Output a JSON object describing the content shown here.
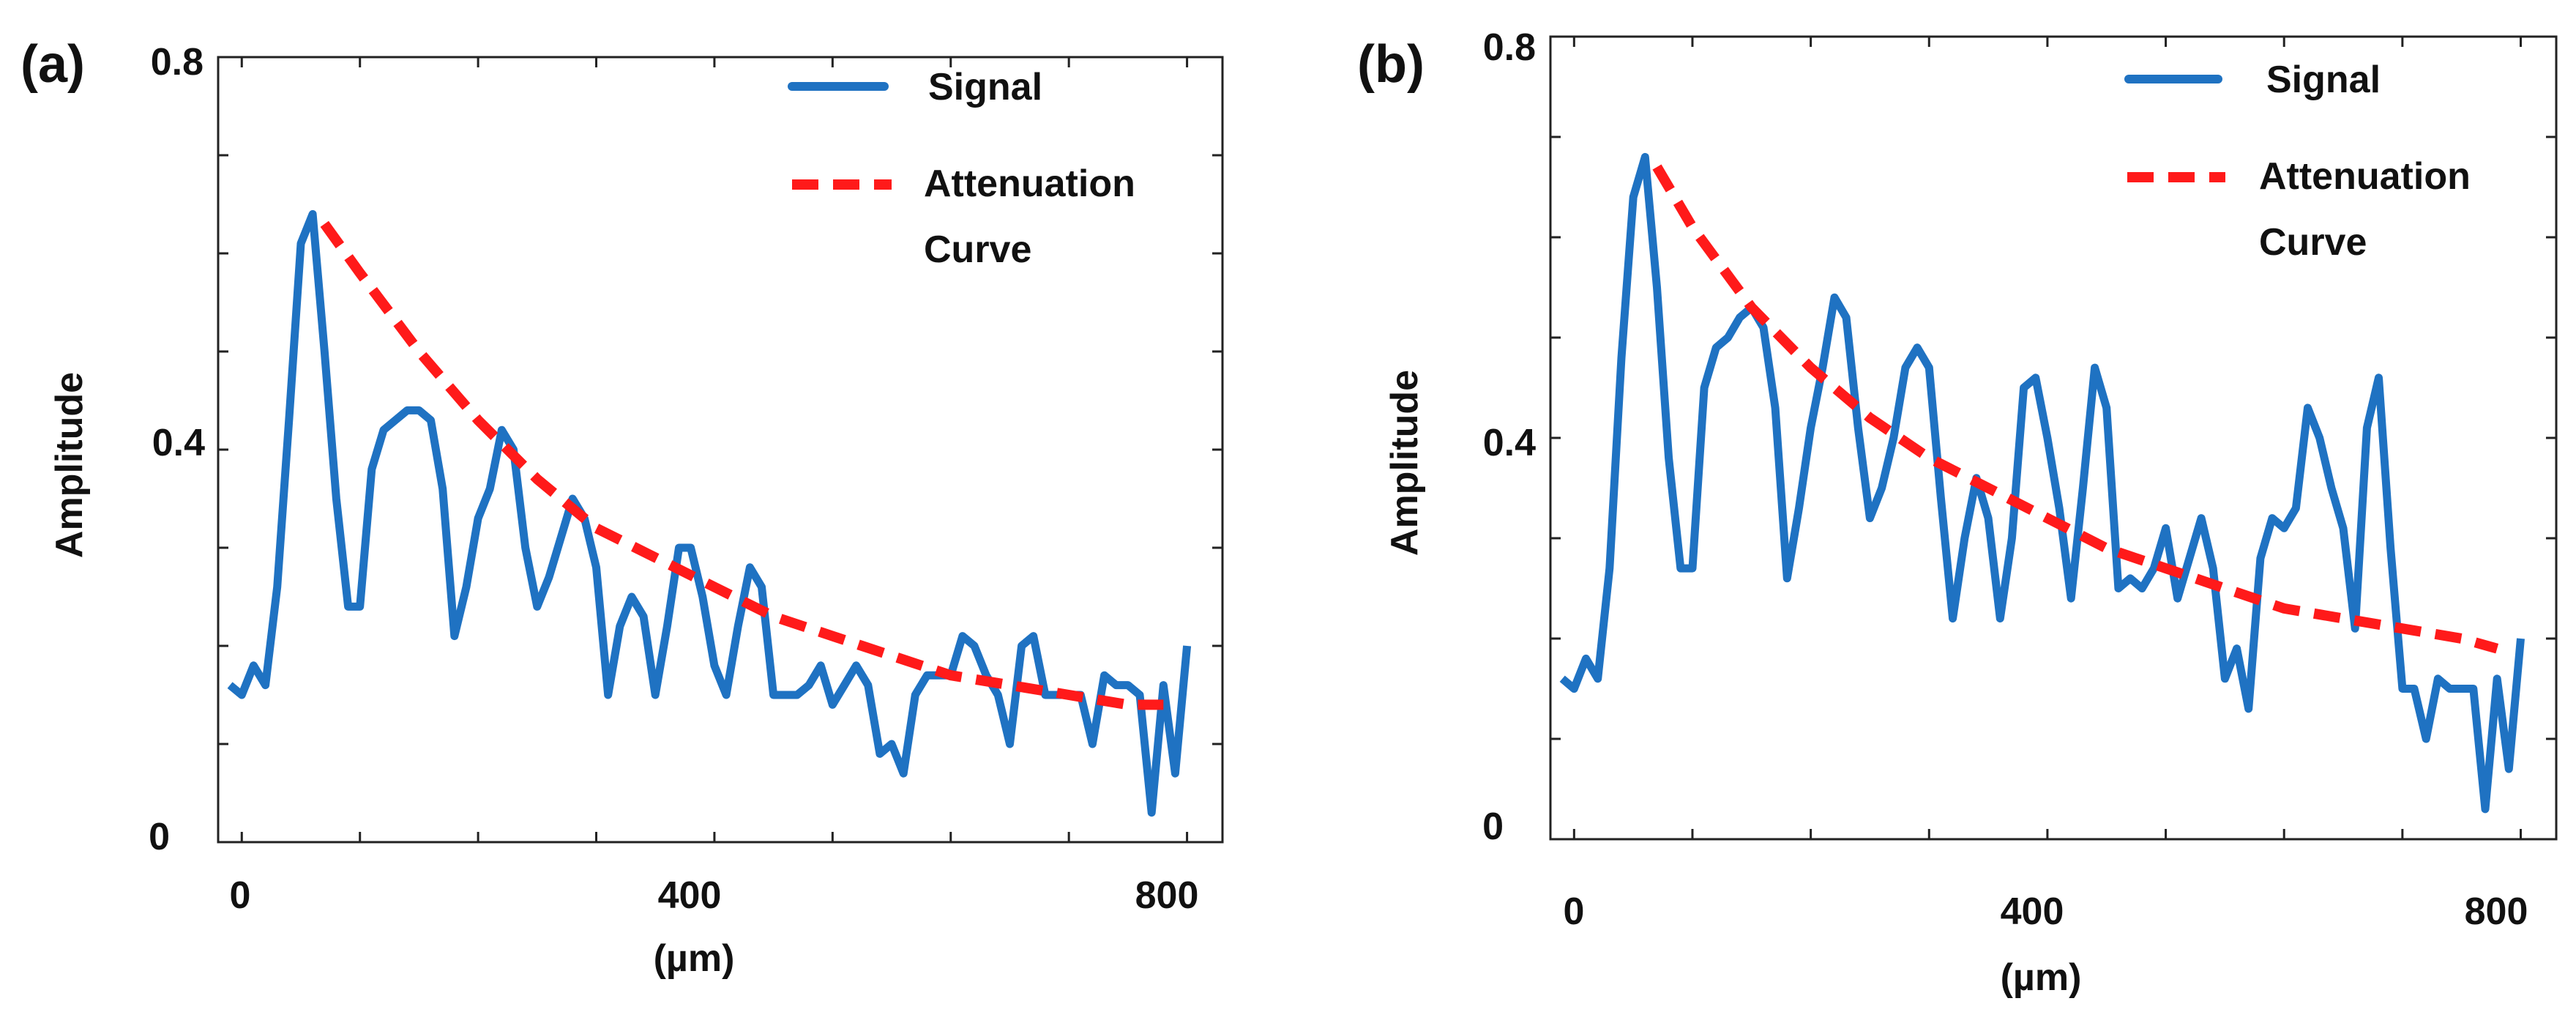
{
  "figure": {
    "panels": [
      {
        "label": "(a)"
      },
      {
        "label": "(b)"
      }
    ]
  },
  "chart_data": [
    {
      "type": "line",
      "panel_label": "(a)",
      "xlabel": "(µm)",
      "ylabel": "Amplitude",
      "xlim": [
        -20,
        830
      ],
      "ylim": [
        0,
        0.8
      ],
      "xticks": [
        0,
        400,
        800
      ],
      "xtick_labels": [
        "0",
        "400",
        "800"
      ],
      "yticks": [
        0,
        0.4,
        0.8
      ],
      "ytick_labels": [
        "0",
        "0.4",
        "0.8"
      ],
      "grid": false,
      "legend": {
        "position": "top-right",
        "entries": [
          "Signal",
          "Attenuation Curve"
        ]
      },
      "series": [
        {
          "name": "Signal",
          "color": "#1f72c2",
          "style": "solid",
          "x": [
            -10,
            0,
            10,
            20,
            30,
            40,
            50,
            60,
            70,
            80,
            90,
            100,
            110,
            120,
            130,
            140,
            150,
            160,
            170,
            180,
            190,
            200,
            210,
            220,
            230,
            240,
            250,
            260,
            270,
            280,
            290,
            300,
            310,
            320,
            330,
            340,
            350,
            360,
            370,
            380,
            390,
            400,
            410,
            420,
            430,
            440,
            450,
            460,
            470,
            480,
            490,
            500,
            510,
            520,
            530,
            540,
            550,
            560,
            570,
            580,
            590,
            600,
            610,
            620,
            630,
            640,
            650,
            660,
            670,
            680,
            690,
            700,
            710,
            720,
            730,
            740,
            750,
            760,
            770,
            780,
            790,
            800
          ],
          "y": [
            0.16,
            0.15,
            0.18,
            0.16,
            0.26,
            0.43,
            0.61,
            0.64,
            0.5,
            0.35,
            0.24,
            0.24,
            0.38,
            0.42,
            0.43,
            0.44,
            0.44,
            0.43,
            0.36,
            0.21,
            0.26,
            0.33,
            0.36,
            0.42,
            0.4,
            0.3,
            0.24,
            0.27,
            0.31,
            0.35,
            0.33,
            0.28,
            0.15,
            0.22,
            0.25,
            0.23,
            0.15,
            0.22,
            0.3,
            0.3,
            0.25,
            0.18,
            0.15,
            0.22,
            0.28,
            0.26,
            0.15,
            0.15,
            0.15,
            0.16,
            0.18,
            0.14,
            0.16,
            0.18,
            0.16,
            0.09,
            0.1,
            0.07,
            0.15,
            0.17,
            0.17,
            0.17,
            0.21,
            0.2,
            0.17,
            0.15,
            0.1,
            0.2,
            0.21,
            0.15,
            0.15,
            0.15,
            0.15,
            0.1,
            0.17,
            0.16,
            0.16,
            0.15,
            0.03,
            0.16,
            0.07,
            0.2
          ]
        },
        {
          "name": "Attenuation Curve",
          "color": "#ff1a1a",
          "style": "dashed",
          "x": [
            70,
            100,
            150,
            200,
            250,
            300,
            350,
            400,
            450,
            500,
            550,
            600,
            650,
            700,
            750,
            780
          ],
          "y": [
            0.63,
            0.58,
            0.5,
            0.43,
            0.37,
            0.32,
            0.29,
            0.26,
            0.23,
            0.21,
            0.19,
            0.17,
            0.16,
            0.15,
            0.14,
            0.14
          ]
        }
      ]
    },
    {
      "type": "line",
      "panel_label": "(b)",
      "xlabel": "(µm)",
      "ylabel": "Amplitude",
      "xlim": [
        -20,
        830
      ],
      "ylim": [
        0,
        0.8
      ],
      "xticks": [
        0,
        400,
        800
      ],
      "xtick_labels": [
        "0",
        "400",
        "800"
      ],
      "yticks": [
        0,
        0.4,
        0.8
      ],
      "ytick_labels": [
        "0",
        "0.4",
        "0.8"
      ],
      "grid": false,
      "legend": {
        "position": "top-right",
        "entries": [
          "Signal",
          "Attenuation Curve"
        ]
      },
      "series": [
        {
          "name": "Signal",
          "color": "#1f72c2",
          "style": "solid",
          "x": [
            -10,
            0,
            10,
            20,
            30,
            40,
            50,
            60,
            70,
            80,
            90,
            100,
            110,
            120,
            130,
            140,
            150,
            160,
            170,
            180,
            190,
            200,
            210,
            220,
            230,
            240,
            250,
            260,
            270,
            280,
            290,
            300,
            310,
            320,
            330,
            340,
            350,
            360,
            370,
            380,
            390,
            400,
            410,
            420,
            430,
            440,
            450,
            460,
            470,
            480,
            490,
            500,
            510,
            520,
            530,
            540,
            550,
            560,
            570,
            580,
            590,
            600,
            610,
            620,
            630,
            640,
            650,
            660,
            670,
            680,
            690,
            700,
            710,
            720,
            730,
            740,
            750,
            760,
            770,
            780,
            790,
            800
          ],
          "y": [
            0.16,
            0.15,
            0.18,
            0.16,
            0.27,
            0.48,
            0.64,
            0.68,
            0.55,
            0.38,
            0.27,
            0.27,
            0.45,
            0.49,
            0.5,
            0.52,
            0.53,
            0.51,
            0.43,
            0.26,
            0.33,
            0.41,
            0.47,
            0.54,
            0.52,
            0.41,
            0.32,
            0.35,
            0.4,
            0.47,
            0.49,
            0.47,
            0.34,
            0.22,
            0.3,
            0.36,
            0.32,
            0.22,
            0.3,
            0.45,
            0.46,
            0.4,
            0.33,
            0.24,
            0.35,
            0.47,
            0.43,
            0.25,
            0.26,
            0.25,
            0.27,
            0.31,
            0.24,
            0.28,
            0.32,
            0.27,
            0.16,
            0.19,
            0.13,
            0.28,
            0.32,
            0.31,
            0.33,
            0.43,
            0.4,
            0.35,
            0.31,
            0.21,
            0.41,
            0.46,
            0.29,
            0.15,
            0.15,
            0.1,
            0.16,
            0.15,
            0.15,
            0.15,
            0.03,
            0.16,
            0.07,
            0.2
          ]
        },
        {
          "name": "Attenuation Curve",
          "color": "#ff1a1a",
          "style": "dashed",
          "x": [
            70,
            100,
            150,
            200,
            250,
            300,
            350,
            400,
            450,
            500,
            550,
            600,
            650,
            700,
            750,
            780
          ],
          "y": [
            0.67,
            0.61,
            0.53,
            0.47,
            0.42,
            0.38,
            0.35,
            0.32,
            0.29,
            0.27,
            0.25,
            0.23,
            0.22,
            0.21,
            0.2,
            0.19
          ]
        }
      ]
    }
  ]
}
